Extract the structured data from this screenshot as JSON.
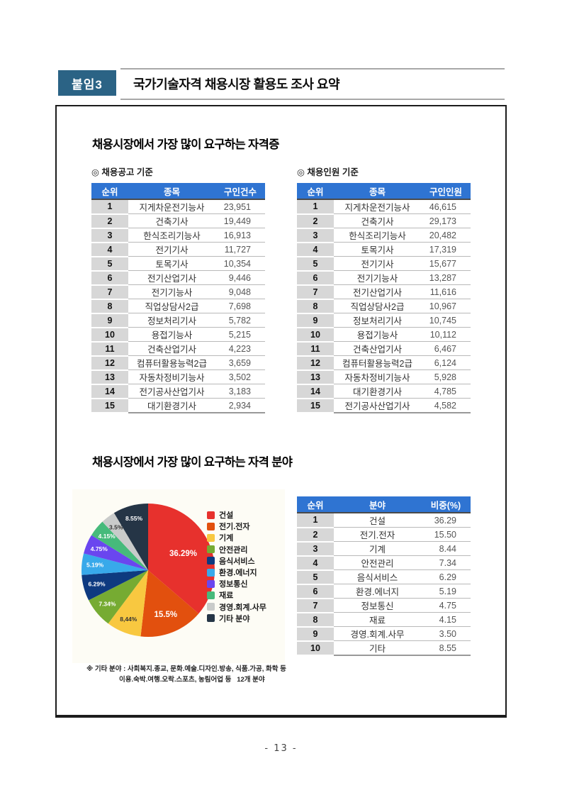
{
  "header": {
    "badge_label": "붙임3",
    "title": "국가기술자격 채용시장 활용도 조사 요약"
  },
  "section_certifications": {
    "title": "채용시장에서 가장 많이 요구하는 자격증",
    "by_postings": {
      "subtitle": "◎ 채용공고 기준",
      "columns": [
        "순위",
        "종목",
        "구인건수"
      ],
      "rows": [
        [
          "1",
          "지게차운전기능사",
          "23,951"
        ],
        [
          "2",
          "건축기사",
          "19,449"
        ],
        [
          "3",
          "한식조리기능사",
          "16,913"
        ],
        [
          "4",
          "전기기사",
          "11,727"
        ],
        [
          "5",
          "토목기사",
          "10,354"
        ],
        [
          "6",
          "전기산업기사",
          "9,446"
        ],
        [
          "7",
          "전기기능사",
          "9,048"
        ],
        [
          "8",
          "직업상담사2급",
          "7,698"
        ],
        [
          "9",
          "정보처리기사",
          "5,782"
        ],
        [
          "10",
          "용접기능사",
          "5,215"
        ],
        [
          "11",
          "건축산업기사",
          "4,223"
        ],
        [
          "12",
          "컴퓨터활용능력2급",
          "3,659"
        ],
        [
          "13",
          "자동차정비기능사",
          "3,502"
        ],
        [
          "14",
          "전기공사산업기사",
          "3,183"
        ],
        [
          "15",
          "대기환경기사",
          "2,934"
        ]
      ]
    },
    "by_headcount": {
      "subtitle": "◎ 채용인원 기준",
      "columns": [
        "순위",
        "종목",
        "구인인원"
      ],
      "rows": [
        [
          "1",
          "지게차운전기능사",
          "46,615"
        ],
        [
          "2",
          "건축기사",
          "29,173"
        ],
        [
          "3",
          "한식조리기능사",
          "20,482"
        ],
        [
          "4",
          "토목기사",
          "17,319"
        ],
        [
          "5",
          "전기기사",
          "15,677"
        ],
        [
          "6",
          "전기기능사",
          "13,287"
        ],
        [
          "7",
          "전기산업기사",
          "11,616"
        ],
        [
          "8",
          "직업상담사2급",
          "10,967"
        ],
        [
          "9",
          "정보처리기사",
          "10,745"
        ],
        [
          "10",
          "용접기능사",
          "10,112"
        ],
        [
          "11",
          "건축산업기사",
          "6,467"
        ],
        [
          "12",
          "컴퓨터활용능력2급",
          "6,124"
        ],
        [
          "13",
          "자동차정비기능사",
          "5,928"
        ],
        [
          "14",
          "대기환경기사",
          "4,785"
        ],
        [
          "15",
          "전기공사산업기사",
          "4,582"
        ]
      ]
    }
  },
  "section_fields": {
    "title": "채용시장에서 가장 많이 요구하는 자격 분야",
    "table": {
      "columns": [
        "순위",
        "분야",
        "비중(%)"
      ],
      "rows": [
        [
          "1",
          "건설",
          "36.29"
        ],
        [
          "2",
          "전기.전자",
          "15.50"
        ],
        [
          "3",
          "기계",
          "8.44"
        ],
        [
          "4",
          "안전관리",
          "7.34"
        ],
        [
          "5",
          "음식서비스",
          "6.29"
        ],
        [
          "6",
          "환경.에너지",
          "5.19"
        ],
        [
          "7",
          "정보통신",
          "4.75"
        ],
        [
          "8",
          "재료",
          "4.15"
        ],
        [
          "9",
          "경영.회계.사무",
          "3.50"
        ],
        [
          "10",
          "기타",
          "8.55"
        ]
      ]
    },
    "footnote": {
      "line1": "※ 기타 분야 : 사회복지.종교, 문화.예술.디자인.방송, 식품.가공, 화학 등",
      "line2": "이용.숙박.여행.오락.스포츠, 농림어업 등   12개 분야"
    }
  },
  "chart_data": {
    "type": "pie",
    "title": "채용시장에서 가장 많이 요구하는 자격 분야",
    "labels": [
      "건설",
      "전기.전자",
      "기계",
      "안전관리",
      "음식서비스",
      "환경.에너지",
      "정보통신",
      "재료",
      "경영.회계.사무",
      "기타 분야"
    ],
    "values": [
      36.29,
      15.5,
      8.44,
      7.34,
      6.29,
      5.19,
      4.75,
      4.15,
      3.5,
      8.55
    ],
    "slice_labels": [
      "36.29%",
      "15.5%",
      "8,44%",
      "7.34%",
      "6.29%",
      "5.19%",
      "4.75%",
      "4.15%",
      "3.5%",
      "8.55%"
    ],
    "colors": [
      "#e7312d",
      "#e2500e",
      "#f8c840",
      "#76ab32",
      "#0e3a80",
      "#38a9ea",
      "#6a46ef",
      "#46ba7b",
      "#c9cbca",
      "#253546"
    ],
    "start_angle_deg": -90,
    "direction": "clockwise",
    "legend_position": "right"
  },
  "footer": {
    "page_number": "- 13 -"
  },
  "theme": {
    "table_header_bg": "#2f74d2",
    "rank_cell_bg": "#d7d7d7",
    "badge_bg": "#2b6385"
  }
}
